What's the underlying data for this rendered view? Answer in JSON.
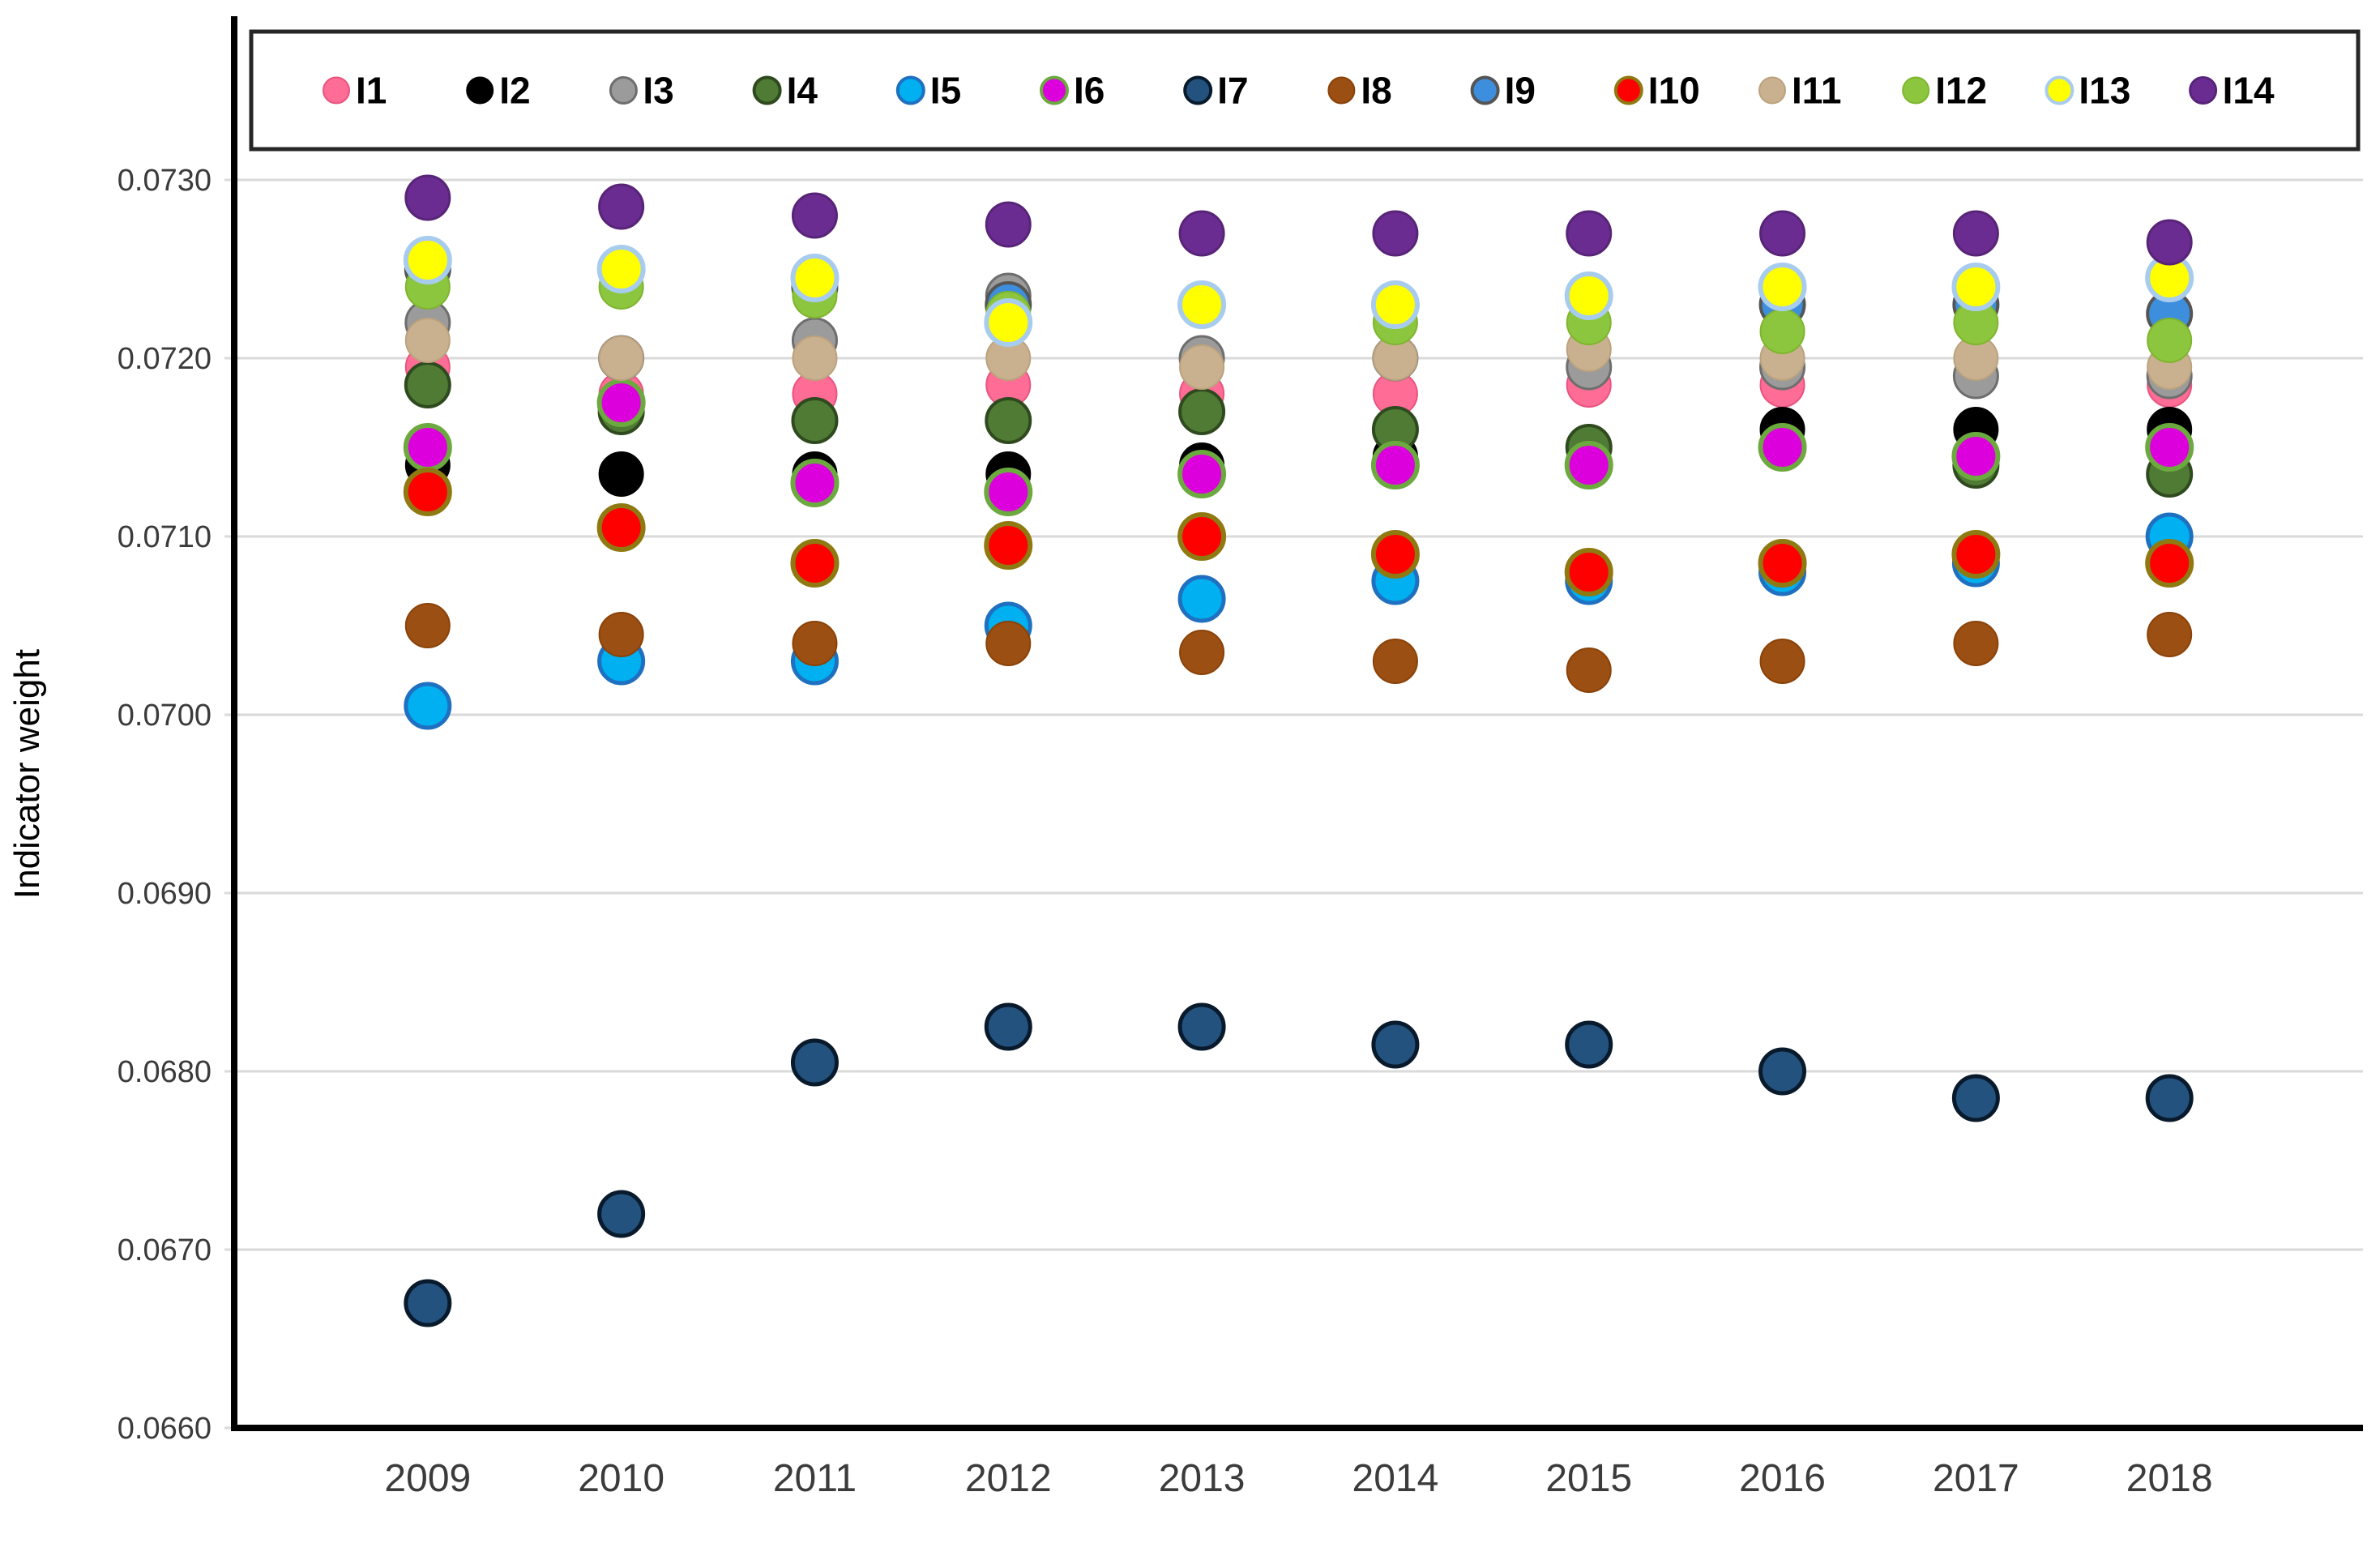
{
  "chart_data": {
    "type": "scatter",
    "title": "",
    "xlabel": "",
    "ylabel": "Indicator weight",
    "grid": "horizontal",
    "legend_position": "top",
    "y_axis": {
      "min": 0.066,
      "max": 0.073,
      "tick_step": 0.001,
      "tick_format_decimals": 4,
      "tick_labels": [
        "0.0660",
        "0.0670",
        "0.0680",
        "0.0690",
        "0.0700",
        "0.0710",
        "0.0720",
        "0.0730"
      ]
    },
    "categories": [
      "2009",
      "2010",
      "2011",
      "2012",
      "2013",
      "2014",
      "2015",
      "2016",
      "2017",
      "2018"
    ],
    "series": [
      {
        "name": "I1",
        "fill": "#FF6D96",
        "stroke": "#E8537F",
        "stroke_width": 2,
        "values": [
          0.07195,
          0.0718,
          0.0718,
          0.07185,
          0.0718,
          0.0718,
          0.07185,
          0.07185,
          0.0719,
          0.07185
        ]
      },
      {
        "name": "I2",
        "fill": "#000000",
        "stroke": "#000000",
        "stroke_width": 2,
        "values": [
          0.0714,
          0.07135,
          0.07135,
          0.07135,
          0.0714,
          0.07145,
          0.0715,
          0.0716,
          0.0716,
          0.0716
        ]
      },
      {
        "name": "I3",
        "fill": "#9B9B9B",
        "stroke": "#6E6E6E",
        "stroke_width": 3,
        "values": [
          0.0722,
          0.072,
          0.0721,
          0.07235,
          0.072,
          0.072,
          0.07195,
          0.07195,
          0.0719,
          0.0719
        ]
      },
      {
        "name": "I4",
        "fill": "#4F7B35",
        "stroke": "#2F4A1E",
        "stroke_width": 4,
        "values": [
          0.07185,
          0.0717,
          0.07165,
          0.07165,
          0.0717,
          0.0716,
          0.0715,
          0.0715,
          0.0714,
          0.07135
        ]
      },
      {
        "name": "I5",
        "fill": "#00B0F0",
        "stroke": "#1F70C0",
        "stroke_width": 5,
        "values": [
          0.07005,
          0.0703,
          0.0703,
          0.0705,
          0.07065,
          0.07075,
          0.07075,
          0.0708,
          0.07085,
          0.071
        ]
      },
      {
        "name": "I6",
        "fill": "#DC00DC",
        "stroke": "#6CA93F",
        "stroke_width": 6,
        "values": [
          0.0715,
          0.07175,
          0.0713,
          0.07125,
          0.07135,
          0.0714,
          0.0714,
          0.0715,
          0.07145,
          0.0715
        ]
      },
      {
        "name": "I7",
        "fill": "#24527E",
        "stroke": "#081A2B",
        "stroke_width": 5,
        "values": [
          0.0667,
          0.0672,
          0.06805,
          0.06825,
          0.06825,
          0.06815,
          0.06815,
          0.068,
          0.06785,
          0.06785
        ]
      },
      {
        "name": "I8",
        "fill": "#9C4F12",
        "stroke": "#8A4208",
        "stroke_width": 2,
        "values": [
          0.0705,
          0.07045,
          0.0704,
          0.0704,
          0.07035,
          0.0703,
          0.07025,
          0.0703,
          0.0704,
          0.07045
        ]
      },
      {
        "name": "I9",
        "fill": "#3E8EDE",
        "stroke": "#555555",
        "stroke_width": 4,
        "values": [
          0.0725,
          0.0725,
          0.0724,
          0.0723,
          0.0723,
          0.0723,
          0.07235,
          0.0723,
          0.0723,
          0.07225
        ]
      },
      {
        "name": "I10",
        "fill": "#FF0000",
        "stroke": "#8F7A11",
        "stroke_width": 6,
        "values": [
          0.07125,
          0.07105,
          0.07085,
          0.07095,
          0.071,
          0.0709,
          0.0708,
          0.07085,
          0.0709,
          0.07085
        ]
      },
      {
        "name": "I11",
        "fill": "#C9B18F",
        "stroke": "#BBA27E",
        "stroke_width": 2,
        "values": [
          0.0721,
          0.072,
          0.072,
          0.072,
          0.07195,
          0.072,
          0.07205,
          0.072,
          0.072,
          0.07195
        ]
      },
      {
        "name": "I12",
        "fill": "#8CC63E",
        "stroke": "#7FB52E",
        "stroke_width": 2,
        "values": [
          0.0724,
          0.0724,
          0.07235,
          0.07225,
          0.0723,
          0.0722,
          0.0722,
          0.07215,
          0.0722,
          0.0721
        ]
      },
      {
        "name": "I13",
        "fill": "#FFFF00",
        "stroke": "#A8CCEE",
        "stroke_width": 6,
        "values": [
          0.07255,
          0.0725,
          0.07245,
          0.0722,
          0.0723,
          0.0723,
          0.07235,
          0.0724,
          0.0724,
          0.07245
        ]
      },
      {
        "name": "I14",
        "fill": "#6A2C91",
        "stroke": "#582478",
        "stroke_width": 3,
        "values": [
          0.0729,
          0.07285,
          0.0728,
          0.07275,
          0.0727,
          0.0727,
          0.0727,
          0.0727,
          0.0727,
          0.07265
        ]
      }
    ],
    "colors": {
      "gridline": "#DADADA",
      "axis_line": "#000000",
      "tick_label": "#3B3B3B",
      "legend_border": "#262626",
      "legend_text": "#000000"
    }
  }
}
